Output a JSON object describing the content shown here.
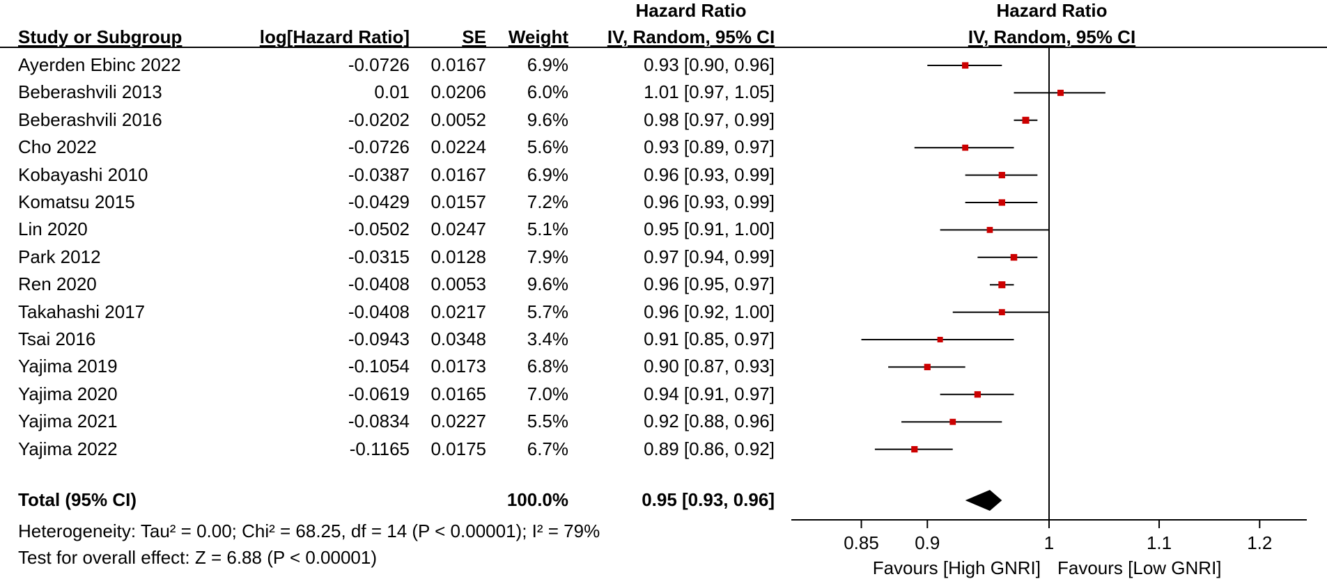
{
  "headers": {
    "study": "Study or Subgroup",
    "loghr": "log[Hazard Ratio]",
    "se": "SE",
    "weight": "Weight",
    "hr_line1": "Hazard Ratio",
    "hr_line2": "IV, Random, 95% CI",
    "plot_line1": "Hazard Ratio",
    "plot_line2": "IV, Random, 95% CI"
  },
  "total": {
    "label": "Total (95% CI)",
    "weight": "100.0%",
    "ci": "0.95 [0.93, 0.96]"
  },
  "footer": {
    "heterogeneity": "Heterogeneity: Tau² = 0.00; Chi² = 68.25, df = 14 (P < 0.00001); I² = 79%",
    "overall": "Test for overall effect: Z = 6.88 (P < 0.00001)"
  },
  "axis": {
    "favours_left": "Favours [High GNRI]",
    "favours_right": "Favours [Low GNRI]"
  },
  "colors": {
    "marker": "#cc0000",
    "line": "#000000",
    "diamond": "#000000"
  },
  "chart_data": {
    "type": "forest",
    "xscale": "log",
    "xlim": [
      0.8,
      1.25
    ],
    "reference": 1,
    "xticks": [
      {
        "value": 0.85,
        "label": "0.85"
      },
      {
        "value": 0.9,
        "label": "0.9"
      },
      {
        "value": 1,
        "label": "1"
      },
      {
        "value": 1.1,
        "label": "1.1"
      },
      {
        "value": 1.2,
        "label": "1.2"
      }
    ],
    "studies": [
      {
        "name": "Ayerden Ebinc 2022",
        "loghr": "-0.0726",
        "se": "0.0167",
        "weight": "6.9%",
        "ci_text": "0.93 [0.90, 0.96]",
        "hr": 0.93,
        "lo": 0.9,
        "hi": 0.96
      },
      {
        "name": "Beberashvili 2013",
        "loghr": "0.01",
        "se": "0.0206",
        "weight": "6.0%",
        "ci_text": "1.01 [0.97, 1.05]",
        "hr": 1.01,
        "lo": 0.97,
        "hi": 1.05
      },
      {
        "name": "Beberashvili 2016",
        "loghr": "-0.0202",
        "se": "0.0052",
        "weight": "9.6%",
        "ci_text": "0.98 [0.97, 0.99]",
        "hr": 0.98,
        "lo": 0.97,
        "hi": 0.99
      },
      {
        "name": "Cho 2022",
        "loghr": "-0.0726",
        "se": "0.0224",
        "weight": "5.6%",
        "ci_text": "0.93 [0.89, 0.97]",
        "hr": 0.93,
        "lo": 0.89,
        "hi": 0.97
      },
      {
        "name": "Kobayashi 2010",
        "loghr": "-0.0387",
        "se": "0.0167",
        "weight": "6.9%",
        "ci_text": "0.96 [0.93, 0.99]",
        "hr": 0.96,
        "lo": 0.93,
        "hi": 0.99
      },
      {
        "name": "Komatsu 2015",
        "loghr": "-0.0429",
        "se": "0.0157",
        "weight": "7.2%",
        "ci_text": "0.96 [0.93, 0.99]",
        "hr": 0.96,
        "lo": 0.93,
        "hi": 0.99
      },
      {
        "name": "Lin 2020",
        "loghr": "-0.0502",
        "se": "0.0247",
        "weight": "5.1%",
        "ci_text": "0.95 [0.91, 1.00]",
        "hr": 0.95,
        "lo": 0.91,
        "hi": 1.0
      },
      {
        "name": "Park 2012",
        "loghr": "-0.0315",
        "se": "0.0128",
        "weight": "7.9%",
        "ci_text": "0.97 [0.94, 0.99]",
        "hr": 0.97,
        "lo": 0.94,
        "hi": 0.99
      },
      {
        "name": "Ren 2020",
        "loghr": "-0.0408",
        "se": "0.0053",
        "weight": "9.6%",
        "ci_text": "0.96 [0.95, 0.97]",
        "hr": 0.96,
        "lo": 0.95,
        "hi": 0.97
      },
      {
        "name": "Takahashi 2017",
        "loghr": "-0.0408",
        "se": "0.0217",
        "weight": "5.7%",
        "ci_text": "0.96 [0.92, 1.00]",
        "hr": 0.96,
        "lo": 0.92,
        "hi": 1.0
      },
      {
        "name": "Tsai 2016",
        "loghr": "-0.0943",
        "se": "0.0348",
        "weight": "3.4%",
        "ci_text": "0.91 [0.85, 0.97]",
        "hr": 0.91,
        "lo": 0.85,
        "hi": 0.97
      },
      {
        "name": "Yajima 2019",
        "loghr": "-0.1054",
        "se": "0.0173",
        "weight": "6.8%",
        "ci_text": "0.90 [0.87, 0.93]",
        "hr": 0.9,
        "lo": 0.87,
        "hi": 0.93
      },
      {
        "name": "Yajima 2020",
        "loghr": "-0.0619",
        "se": "0.0165",
        "weight": "7.0%",
        "ci_text": "0.94 [0.91, 0.97]",
        "hr": 0.94,
        "lo": 0.91,
        "hi": 0.97
      },
      {
        "name": "Yajima 2021",
        "loghr": "-0.0834",
        "se": "0.0227",
        "weight": "5.5%",
        "ci_text": "0.92 [0.88, 0.96]",
        "hr": 0.92,
        "lo": 0.88,
        "hi": 0.96
      },
      {
        "name": "Yajima 2022",
        "loghr": "-0.1165",
        "se": "0.0175",
        "weight": "6.7%",
        "ci_text": "0.89 [0.86, 0.92]",
        "hr": 0.89,
        "lo": 0.86,
        "hi": 0.92
      }
    ],
    "pooled": {
      "hr": 0.95,
      "lo": 0.93,
      "hi": 0.96
    }
  }
}
